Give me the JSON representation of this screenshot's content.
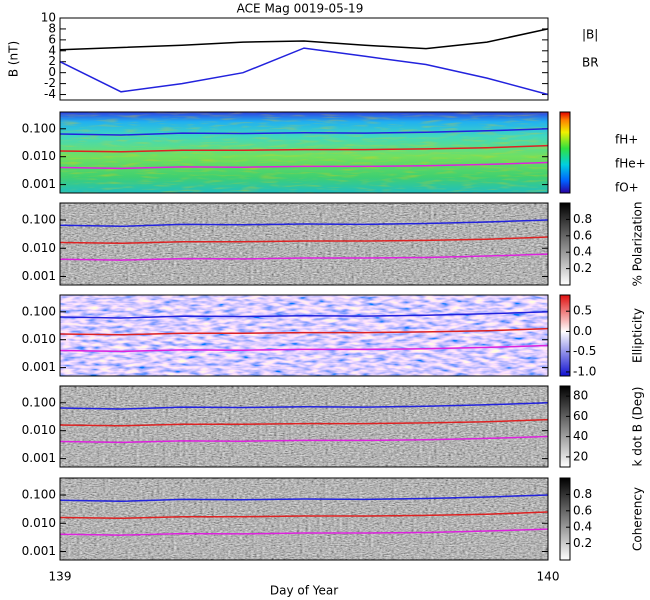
{
  "chart_data": [
    {
      "type": "line",
      "title": "ACE Mag 0019-05-19",
      "ylabel": "B (nT)",
      "x": [
        139,
        139.125,
        139.25,
        139.375,
        139.5,
        139.625,
        139.75,
        139.875,
        140
      ],
      "xlim": [
        139,
        140
      ],
      "ylim": [
        -5,
        10
      ],
      "yticks": [
        -4,
        -2,
        0,
        2,
        4,
        6,
        8,
        10
      ],
      "series": [
        {
          "name": "|B|",
          "color": "#000000",
          "values": [
            4.2,
            4.6,
            5.0,
            5.6,
            5.8,
            5.0,
            4.4,
            5.6,
            8.0
          ]
        },
        {
          "name": "BR",
          "color": "#2222dd",
          "values": [
            2,
            -3.5,
            -2,
            0,
            4.5,
            3,
            1.5,
            -1,
            -4
          ]
        }
      ]
    },
    {
      "type": "spectrogram",
      "colormap": "rainbow",
      "log_y": true,
      "x": [
        139,
        139.125,
        139.25,
        139.375,
        139.5,
        139.625,
        139.75,
        139.875,
        140
      ],
      "xlim": [
        139,
        140
      ],
      "ylim": [
        0.0005,
        0.4
      ],
      "yticks": [
        {
          "value": 0.001,
          "label": "0.001"
        },
        {
          "value": 0.01,
          "label": "0.010"
        },
        {
          "value": 0.1,
          "label": "0.100"
        }
      ],
      "series": [
        {
          "name": "fH+",
          "color": "#2222dd",
          "values": [
            0.065,
            0.06,
            0.07,
            0.068,
            0.072,
            0.07,
            0.075,
            0.085,
            0.1
          ]
        },
        {
          "name": "fHe+",
          "color": "#dd2222",
          "values": [
            0.016,
            0.015,
            0.017,
            0.017,
            0.018,
            0.018,
            0.019,
            0.021,
            0.025
          ]
        },
        {
          "name": "fO+",
          "color": "#dd22dd",
          "values": [
            0.0041,
            0.0038,
            0.0043,
            0.0042,
            0.0045,
            0.0045,
            0.0047,
            0.0053,
            0.0062
          ]
        }
      ]
    },
    {
      "type": "spectrogram",
      "colormap": "gray",
      "log_y": true,
      "colorbar_label": "% Polarization",
      "colorbar_lim": [
        0,
        1
      ],
      "colorbar_ticks": [
        0.2,
        0.4,
        0.6,
        0.8
      ],
      "x": [
        139,
        139.125,
        139.25,
        139.375,
        139.5,
        139.625,
        139.75,
        139.875,
        140
      ],
      "xlim": [
        139,
        140
      ],
      "ylim": [
        0.0005,
        0.4
      ],
      "yticks": [
        {
          "value": 0.001,
          "label": "0.001"
        },
        {
          "value": 0.01,
          "label": "0.010"
        },
        {
          "value": 0.1,
          "label": "0.100"
        }
      ],
      "series": [
        {
          "color": "#2222dd",
          "values": [
            0.065,
            0.06,
            0.07,
            0.068,
            0.072,
            0.07,
            0.075,
            0.085,
            0.1
          ]
        },
        {
          "color": "#dd2222",
          "values": [
            0.016,
            0.015,
            0.017,
            0.017,
            0.018,
            0.018,
            0.019,
            0.021,
            0.025
          ]
        },
        {
          "color": "#dd22dd",
          "values": [
            0.0041,
            0.0038,
            0.0043,
            0.0042,
            0.0045,
            0.0045,
            0.0047,
            0.0053,
            0.0062
          ]
        }
      ]
    },
    {
      "type": "spectrogram",
      "colormap": "bwr",
      "log_y": true,
      "colorbar_label": "Ellipticity",
      "colorbar_lim": [
        -1.1,
        0.9
      ],
      "colorbar_ticks": [
        {
          "value": -1,
          "label": "-1.0"
        },
        -0.5,
        {
          "value": 0,
          "label": "0.0"
        },
        0.5
      ],
      "x": [
        139,
        139.125,
        139.25,
        139.375,
        139.5,
        139.625,
        139.75,
        139.875,
        140
      ],
      "xlim": [
        139,
        140
      ],
      "ylim": [
        0.0005,
        0.4
      ],
      "yticks": [
        {
          "value": 0.001,
          "label": "0.001"
        },
        {
          "value": 0.01,
          "label": "0.010"
        },
        {
          "value": 0.1,
          "label": "0.100"
        }
      ],
      "series": [
        {
          "color": "#2222dd",
          "values": [
            0.065,
            0.06,
            0.07,
            0.068,
            0.072,
            0.07,
            0.075,
            0.085,
            0.1
          ]
        },
        {
          "color": "#dd2222",
          "values": [
            0.016,
            0.015,
            0.017,
            0.017,
            0.018,
            0.018,
            0.019,
            0.021,
            0.025
          ]
        },
        {
          "color": "#dd22dd",
          "values": [
            0.0041,
            0.0038,
            0.0043,
            0.0042,
            0.0045,
            0.0045,
            0.0047,
            0.0053,
            0.0062
          ]
        }
      ]
    },
    {
      "type": "spectrogram",
      "colormap": "gray",
      "log_y": true,
      "colorbar_label": "k dot B (Deg)",
      "colorbar_lim": [
        10,
        90
      ],
      "colorbar_ticks": [
        20,
        40,
        60,
        80
      ],
      "x": [
        139,
        139.125,
        139.25,
        139.375,
        139.5,
        139.625,
        139.75,
        139.875,
        140
      ],
      "xlim": [
        139,
        140
      ],
      "ylim": [
        0.0005,
        0.4
      ],
      "yticks": [
        {
          "value": 0.001,
          "label": "0.001"
        },
        {
          "value": 0.01,
          "label": "0.010"
        },
        {
          "value": 0.1,
          "label": "0.100"
        }
      ],
      "series": [
        {
          "color": "#2222dd",
          "values": [
            0.065,
            0.06,
            0.07,
            0.068,
            0.072,
            0.07,
            0.075,
            0.085,
            0.1
          ]
        },
        {
          "color": "#dd2222",
          "values": [
            0.016,
            0.015,
            0.017,
            0.017,
            0.018,
            0.018,
            0.019,
            0.021,
            0.025
          ]
        },
        {
          "color": "#dd22dd",
          "values": [
            0.0041,
            0.0038,
            0.0043,
            0.0042,
            0.0045,
            0.0045,
            0.0047,
            0.0053,
            0.0062
          ]
        }
      ]
    },
    {
      "type": "spectrogram",
      "colormap": "gray",
      "log_y": true,
      "colorbar_label": "Coherency",
      "colorbar_lim": [
        0,
        1
      ],
      "colorbar_ticks": [
        0.2,
        0.4,
        0.6,
        0.8
      ],
      "x": [
        139,
        139.125,
        139.25,
        139.375,
        139.5,
        139.625,
        139.75,
        139.875,
        140
      ],
      "xlim": [
        139,
        140
      ],
      "xticks": [
        139,
        140
      ],
      "xlabel": "Day of Year",
      "ylim": [
        0.0005,
        0.4
      ],
      "yticks": [
        {
          "value": 0.001,
          "label": "0.001"
        },
        {
          "value": 0.01,
          "label": "0.010"
        },
        {
          "value": 0.1,
          "label": "0.100"
        }
      ],
      "series": [
        {
          "color": "#2222dd",
          "values": [
            0.065,
            0.06,
            0.07,
            0.068,
            0.072,
            0.07,
            0.075,
            0.085,
            0.1
          ]
        },
        {
          "color": "#dd2222",
          "values": [
            0.016,
            0.015,
            0.017,
            0.017,
            0.018,
            0.018,
            0.019,
            0.021,
            0.025
          ]
        },
        {
          "color": "#dd22dd",
          "values": [
            0.0041,
            0.0038,
            0.0043,
            0.0042,
            0.0045,
            0.0045,
            0.0047,
            0.0053,
            0.0062
          ]
        }
      ]
    }
  ]
}
